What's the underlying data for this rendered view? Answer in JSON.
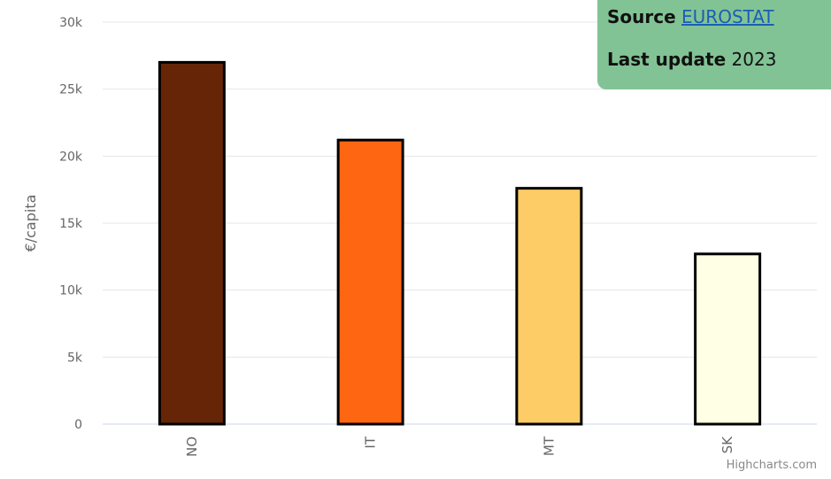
{
  "info": {
    "source_label": "Source",
    "source_link": "EUROSTAT",
    "update_label": "Last update",
    "update_value": "2023"
  },
  "credits": "Highcharts.com",
  "chart_data": {
    "type": "bar",
    "categories": [
      "NO",
      "IT",
      "MT",
      "SK"
    ],
    "values": [
      27000,
      21200,
      17600,
      12700
    ],
    "colors": [
      "#662506",
      "#fe6611",
      "#fecc66",
      "#ffffe5"
    ],
    "ylabel": "€/capita",
    "xlabel": "",
    "ylim": [
      0,
      30000
    ],
    "yticks": [
      0,
      5000,
      10000,
      15000,
      20000,
      25000,
      30000
    ],
    "ytick_labels": [
      "0",
      "5k",
      "10k",
      "15k",
      "20k",
      "25k",
      "30k"
    ],
    "grid": true
  }
}
